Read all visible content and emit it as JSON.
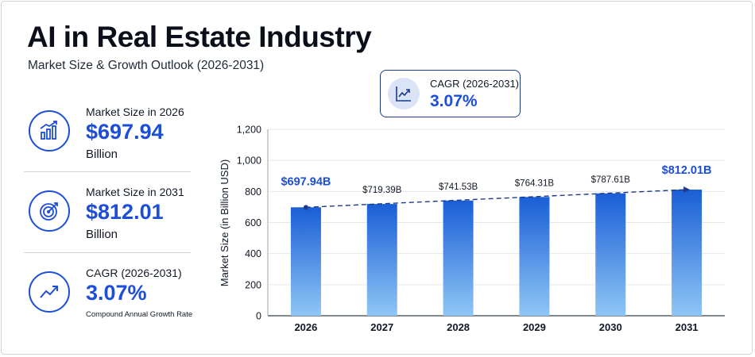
{
  "title": "AI in Real Estate Industry",
  "subtitle": "Market Size & Growth Outlook (2026-2031)",
  "kpis": [
    {
      "label": "Market Size in 2026",
      "value": "$697.94",
      "unit": "Billion",
      "icon": "bar-chart-growth-icon"
    },
    {
      "label": "Market Size in 2031",
      "value": "$812.01",
      "unit": "Billion",
      "icon": "target-icon"
    },
    {
      "label": "CAGR (2026-2031)",
      "value": "3.07%",
      "note": "Compound Annual Growth Rate",
      "icon": "trend-up-icon"
    }
  ],
  "cagr_callout": {
    "label": "CAGR (2026-2031)",
    "value": "3.07%",
    "icon": "line-chart-icon"
  },
  "colors": {
    "accent": "#1d4ed8",
    "bar_top": "#1a5ed6",
    "bar_bottom": "#8fc6f5",
    "trend": "#1d3a8a"
  },
  "chart_data": {
    "type": "bar",
    "categories": [
      "2026",
      "2027",
      "2028",
      "2029",
      "2030",
      "2031"
    ],
    "values": [
      697.94,
      719.39,
      741.53,
      764.31,
      787.61,
      812.01
    ],
    "value_labels": [
      "$697.94B",
      "$719.39B",
      "$741.53B",
      "$764.31B",
      "$787.61B",
      "$812.01B"
    ],
    "highlighted_labels": [
      0,
      5
    ],
    "ylabel": "Market Size (in Billion USD)",
    "ylim": [
      0,
      1200
    ],
    "yticks": [
      0,
      200,
      400,
      600,
      800,
      "1,000",
      "1,200"
    ],
    "grid": true,
    "trend_line": {
      "style": "dashed",
      "from": "2026",
      "to": "2031"
    }
  }
}
